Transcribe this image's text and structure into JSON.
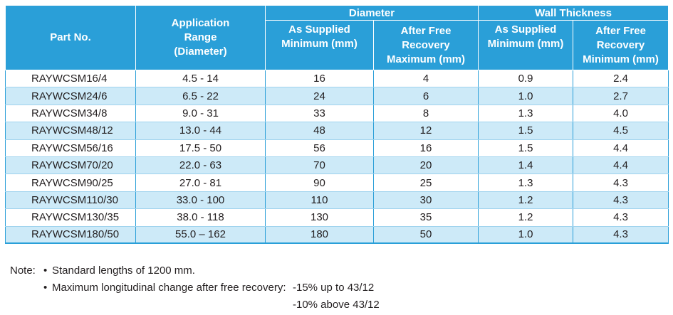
{
  "table": {
    "headers": {
      "part_no": "Part No.",
      "application_range": [
        "Application",
        "Range",
        "(Diameter)"
      ],
      "diameter_group": "Diameter",
      "wall_thickness_group": "Wall Thickness",
      "as_supplied_min": [
        "As Supplied",
        "Minimum (mm)"
      ],
      "after_free_recovery_max": [
        "After Free",
        "Recovery",
        "Maximum (mm)"
      ],
      "wall_as_supplied_min": [
        "As Supplied",
        "Minimum (mm)"
      ],
      "wall_after_free_recovery_min": [
        "After Free",
        "Recovery",
        "Minimum (mm)"
      ]
    },
    "rows": [
      [
        "RAYWCSM16/4",
        "4.5 - 14",
        "16",
        "4",
        "0.9",
        "2.4"
      ],
      [
        "RAYWCSM24/6",
        "6.5 - 22",
        "24",
        "6",
        "1.0",
        "2.7"
      ],
      [
        "RAYWCSM34/8",
        "9.0 - 31",
        "33",
        "8",
        "1.3",
        "4.0"
      ],
      [
        "RAYWCSM48/12",
        "13.0 - 44",
        "48",
        "12",
        "1.5",
        "4.5"
      ],
      [
        "RAYWCSM56/16",
        "17.5 - 50",
        "56",
        "16",
        "1.5",
        "4.4"
      ],
      [
        "RAYWCSM70/20",
        "22.0 - 63",
        "70",
        "20",
        "1.4",
        "4.4"
      ],
      [
        "RAYWCSM90/25",
        "27.0 - 81",
        "90",
        "25",
        "1.3",
        "4.3"
      ],
      [
        "RAYWCSM110/30",
        "33.0 - 100",
        "110",
        "30",
        "1.2",
        "4.3"
      ],
      [
        "RAYWCSM130/35",
        "38.0 - 118",
        "130",
        "35",
        "1.2",
        "4.3"
      ],
      [
        "RAYWCSM180/50",
        "55.0 – 162",
        "180",
        "50",
        "1.0",
        "4.3"
      ]
    ]
  },
  "notes": {
    "label": "Note:",
    "bullet_char": "•",
    "item1": "Standard lengths of 1200 mm.",
    "item2": "Maximum longitudinal change after free recovery:",
    "item2_sub1": "-15% up to 43/12",
    "item2_sub2": "-10% above 43/12"
  },
  "colors": {
    "header_bg": "#2a9fd8",
    "stripe_bg": "#cdeaf8",
    "text": "#231f20"
  }
}
